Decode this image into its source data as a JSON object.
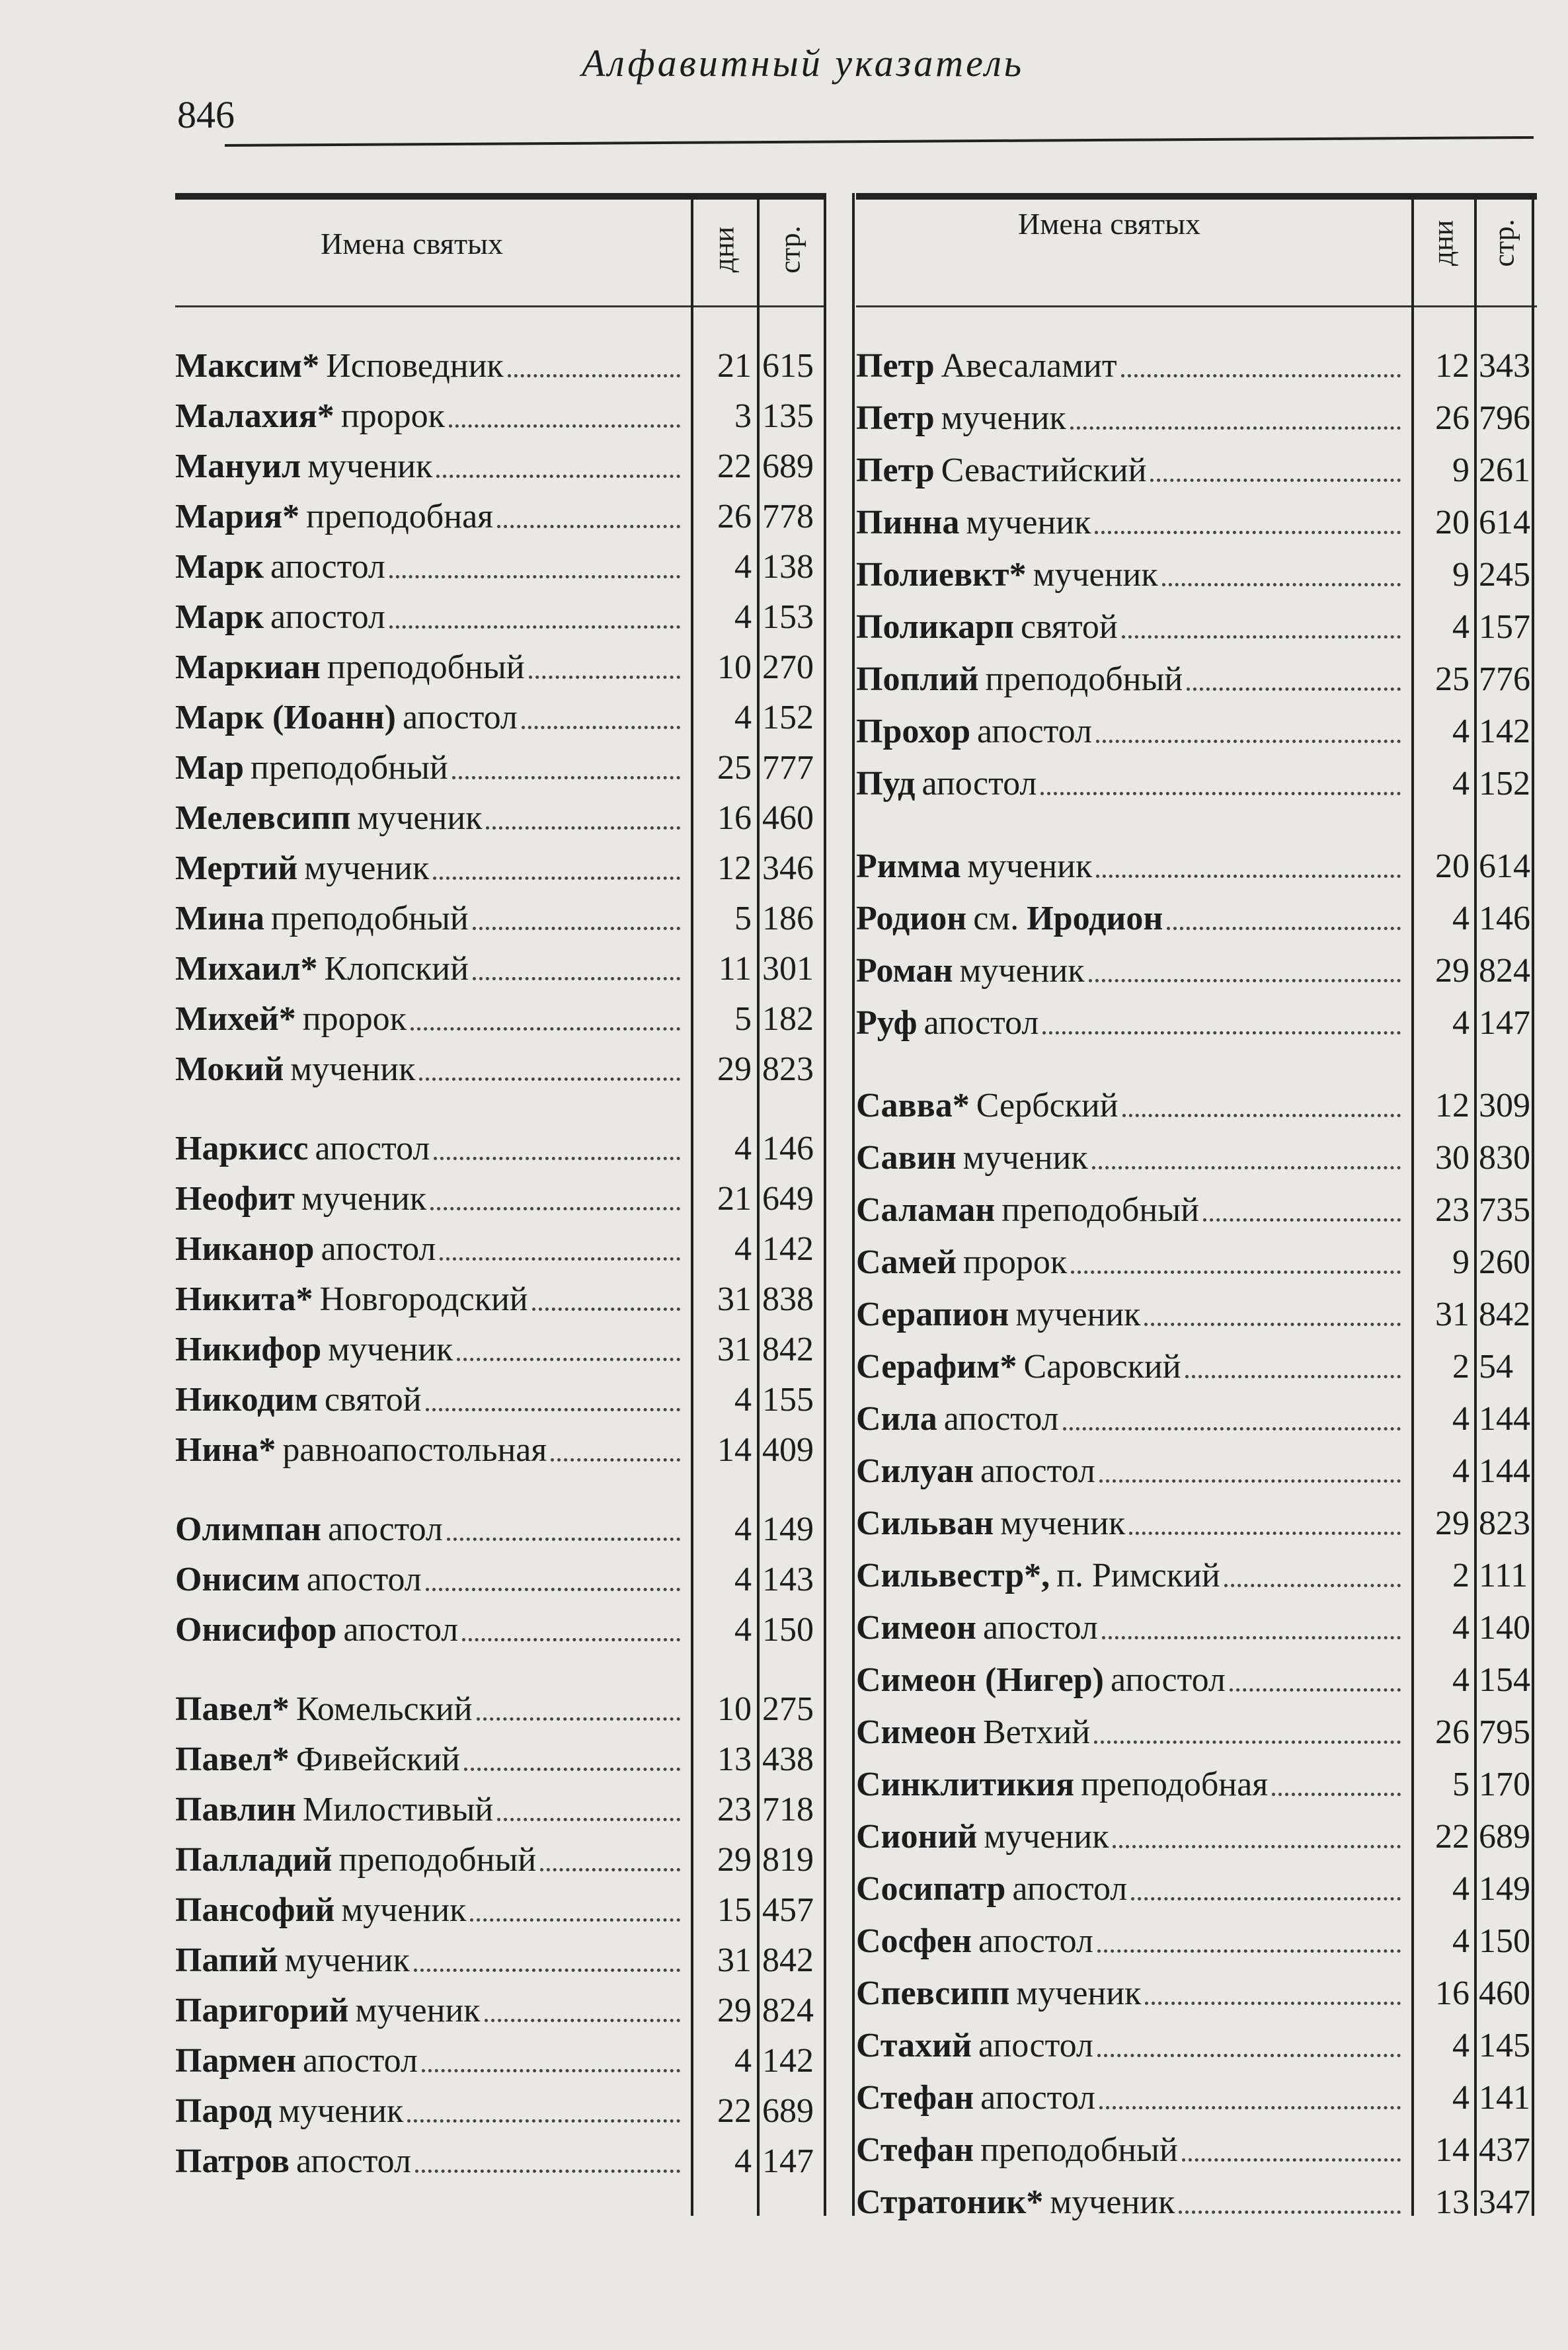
{
  "header": {
    "page_number": "846",
    "running_title": "Алфавитный указатель"
  },
  "columns": {
    "names": "Имена святых",
    "days": "дни",
    "pages": "стр."
  },
  "left_entries": [
    {
      "name": "Максим*",
      "desc": "Исповедник",
      "day": "21",
      "page": "615"
    },
    {
      "name": "Малахия*",
      "desc": "пророк",
      "day": "3",
      "page": "135"
    },
    {
      "name": "Мануил",
      "desc": "мученик",
      "day": "22",
      "page": "689"
    },
    {
      "name": "Мария*",
      "desc": "преподобная",
      "day": "26",
      "page": "778"
    },
    {
      "name": "Марк",
      "desc": "апостол",
      "day": "4",
      "page": "138"
    },
    {
      "name": "Марк",
      "desc": "апостол",
      "day": "4",
      "page": "153"
    },
    {
      "name": "Маркиан",
      "desc": "преподобный",
      "day": "10",
      "page": "270"
    },
    {
      "name": "Марк (Иоанн)",
      "desc": "апостол",
      "day": "4",
      "page": "152"
    },
    {
      "name": "Мар",
      "desc": "преподобный",
      "day": "25",
      "page": "777"
    },
    {
      "name": "Мелевсипп",
      "desc": "мученик",
      "day": "16",
      "page": "460"
    },
    {
      "name": "Мертий",
      "desc": "мученик",
      "day": "12",
      "page": "346"
    },
    {
      "name": "Мина",
      "desc": "преподобный",
      "day": "5",
      "page": "186"
    },
    {
      "name": "Михаил*",
      "desc": "Клопский",
      "day": "11",
      "page": "301"
    },
    {
      "name": "Михей*",
      "desc": "пророк",
      "day": "5",
      "page": "182"
    },
    {
      "name": "Мокий",
      "desc": "мученик",
      "day": "29",
      "page": "823"
    },
    {
      "name": "Наркисс",
      "desc": "апостол",
      "day": "4",
      "page": "146",
      "gap": true
    },
    {
      "name": "Неофит",
      "desc": "мученик",
      "day": "21",
      "page": "649"
    },
    {
      "name": "Никанор",
      "desc": "апостол",
      "day": "4",
      "page": "142"
    },
    {
      "name": "Никита*",
      "desc": "Новгородский",
      "day": "31",
      "page": "838"
    },
    {
      "name": "Никифор",
      "desc": "мученик",
      "day": "31",
      "page": "842"
    },
    {
      "name": "Никодим",
      "desc": "святой",
      "day": "4",
      "page": "155"
    },
    {
      "name": "Нина*",
      "desc": "равноапостольная",
      "day": "14",
      "page": "409"
    },
    {
      "name": "Олимпан",
      "desc": "апостол",
      "day": "4",
      "page": "149",
      "gap": true
    },
    {
      "name": "Онисим",
      "desc": "апостол",
      "day": "4",
      "page": "143"
    },
    {
      "name": "Онисифор",
      "desc": "апостол",
      "day": "4",
      "page": "150"
    },
    {
      "name": "Павел*",
      "desc": "Комельский",
      "day": "10",
      "page": "275",
      "gap": true
    },
    {
      "name": "Павел*",
      "desc": "Фивейский",
      "day": "13",
      "page": "438"
    },
    {
      "name": "Павлин",
      "desc": "Милостивый",
      "day": "23",
      "page": "718"
    },
    {
      "name": "Палладий",
      "desc": "преподобный",
      "day": "29",
      "page": "819"
    },
    {
      "name": "Пансофий",
      "desc": "мученик",
      "day": "15",
      "page": "457"
    },
    {
      "name": "Папий",
      "desc": "мученик",
      "day": "31",
      "page": "842"
    },
    {
      "name": "Паригорий",
      "desc": "мученик",
      "day": "29",
      "page": "824"
    },
    {
      "name": "Пармен",
      "desc": "апостол",
      "day": "4",
      "page": "142"
    },
    {
      "name": "Парод",
      "desc": "мученик",
      "day": "22",
      "page": "689"
    },
    {
      "name": "Патров",
      "desc": "апостол",
      "day": "4",
      "page": "147"
    }
  ],
  "right_entries": [
    {
      "name": "Петр",
      "desc": "Авесаламит",
      "day": "12",
      "page": "343"
    },
    {
      "name": "Петр",
      "desc": "мученик",
      "day": "26",
      "page": "796"
    },
    {
      "name": "Петр",
      "desc": "Севастийский",
      "day": "9",
      "page": "261"
    },
    {
      "name": "Пинна",
      "desc": "мученик",
      "day": "20",
      "page": "614"
    },
    {
      "name": "Полиевкт*",
      "desc": "мученик",
      "day": "9",
      "page": "245"
    },
    {
      "name": "Поликарп",
      "desc": "святой",
      "day": "4",
      "page": "157"
    },
    {
      "name": "Поплий",
      "desc": "преподобный",
      "day": "25",
      "page": "776"
    },
    {
      "name": "Прохор",
      "desc": "апостол",
      "day": "4",
      "page": "142"
    },
    {
      "name": "Пуд",
      "desc": "апостол",
      "day": "4",
      "page": "152"
    },
    {
      "name": "Римма",
      "desc": "мученик",
      "day": "20",
      "page": "614",
      "gap": true
    },
    {
      "name": "Родион",
      "desc": "см.",
      "ref": "Иродион",
      "day": "4",
      "page": "146"
    },
    {
      "name": "Роман",
      "desc": "мученик",
      "day": "29",
      "page": "824"
    },
    {
      "name": "Руф",
      "desc": "апостол",
      "day": "4",
      "page": "147"
    },
    {
      "name": "Савва*",
      "desc": "Сербский",
      "day": "12",
      "page": "309",
      "gap": true
    },
    {
      "name": "Савин",
      "desc": "мученик",
      "day": "30",
      "page": "830"
    },
    {
      "name": "Саламан",
      "desc": "преподобный",
      "day": "23",
      "page": "735"
    },
    {
      "name": "Самей",
      "desc": "пророк",
      "day": "9",
      "page": "260"
    },
    {
      "name": "Серапион",
      "desc": "мученик",
      "day": "31",
      "page": "842"
    },
    {
      "name": "Серафим*",
      "desc": "Саровский",
      "day": "2",
      "page": "54"
    },
    {
      "name": "Сила",
      "desc": "апостол",
      "day": "4",
      "page": "144"
    },
    {
      "name": "Силуан",
      "desc": "апостол",
      "day": "4",
      "page": "144"
    },
    {
      "name": "Сильван",
      "desc": "мученик",
      "day": "29",
      "page": "823"
    },
    {
      "name": "Сильвестр*,",
      "desc": "п. Римский",
      "day": "2",
      "page": "111"
    },
    {
      "name": "Симеон",
      "desc": "апостол",
      "day": "4",
      "page": "140"
    },
    {
      "name": "Симеон (Нигер)",
      "desc": "апостол",
      "day": "4",
      "page": "154"
    },
    {
      "name": "Симеон",
      "desc": "Ветхий",
      "day": "26",
      "page": "795"
    },
    {
      "name": "Синклитикия",
      "desc": "преподобная",
      "day": "5",
      "page": "170"
    },
    {
      "name": "Сионий",
      "desc": "мученик",
      "day": "22",
      "page": "689"
    },
    {
      "name": "Сосипатр",
      "desc": "апостол",
      "day": "4",
      "page": "149"
    },
    {
      "name": "Сосфен",
      "desc": "апостол",
      "day": "4",
      "page": "150"
    },
    {
      "name": "Спевсипп",
      "desc": "мученик",
      "day": "16",
      "page": "460"
    },
    {
      "name": "Стахий",
      "desc": "апостол",
      "day": "4",
      "page": "145"
    },
    {
      "name": "Стефан",
      "desc": "апостол",
      "day": "4",
      "page": "141"
    },
    {
      "name": "Стефан",
      "desc": "преподобный",
      "day": "14",
      "page": "437"
    },
    {
      "name": "Стратоник*",
      "desc": "мученик",
      "day": "13",
      "page": "347"
    }
  ]
}
